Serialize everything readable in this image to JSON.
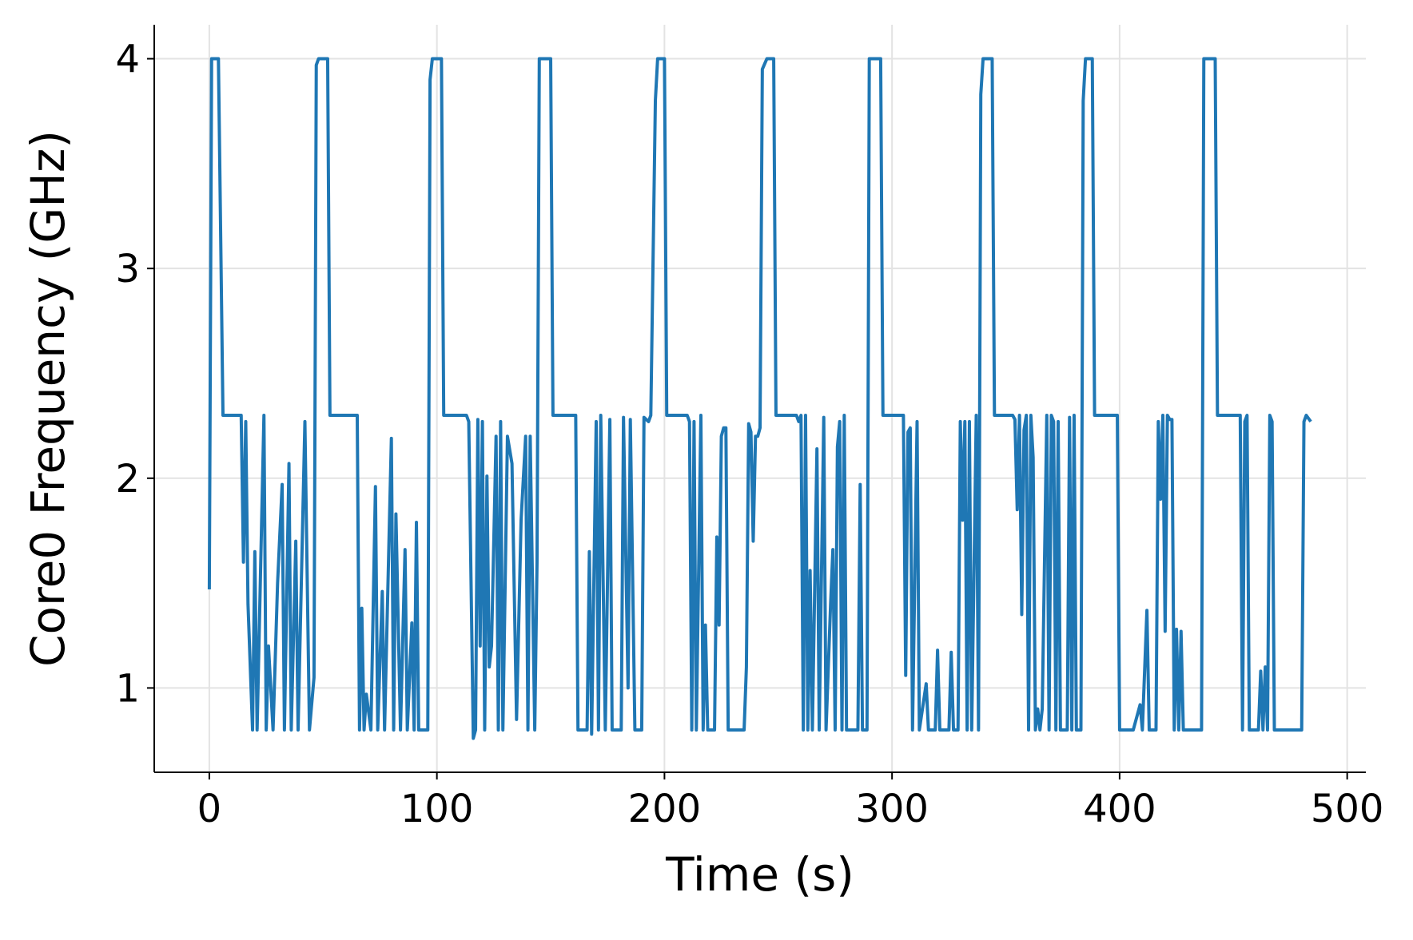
{
  "chart_data": {
    "type": "line",
    "x_label": "Time (s)",
    "y_label": "Core0 Frequency (GHz)",
    "x": [
      0,
      1,
      4,
      6,
      14,
      15,
      16,
      17,
      19,
      20,
      21,
      24,
      25,
      26,
      28,
      30,
      32,
      33,
      35,
      36,
      38,
      39,
      42,
      44,
      46,
      47,
      48,
      52,
      53,
      65,
      66,
      67,
      68,
      69,
      71,
      73,
      74,
      76,
      77,
      80,
      81,
      82,
      84,
      86,
      87,
      89,
      90,
      91,
      92,
      96,
      97,
      98,
      102,
      103,
      113,
      114,
      116,
      117,
      118,
      119,
      120,
      121,
      122,
      123,
      124,
      126,
      127,
      128,
      129,
      131,
      133,
      135,
      137,
      139,
      140,
      141,
      143,
      144,
      145,
      150,
      151,
      161,
      162,
      166,
      167,
      168,
      170,
      171,
      172,
      174,
      176,
      177,
      181,
      182,
      184,
      185,
      187,
      190,
      191,
      193,
      194,
      196,
      197,
      200,
      201,
      210,
      211,
      212,
      213,
      214,
      216,
      217,
      218,
      219,
      222,
      223,
      224,
      225,
      226,
      227,
      228,
      235,
      236,
      237,
      238,
      239,
      240,
      241,
      242,
      243,
      245,
      248,
      249,
      258,
      259,
      260,
      261,
      262,
      263,
      264,
      265,
      267,
      268,
      270,
      271,
      273,
      274,
      275,
      276,
      277,
      278,
      279,
      280,
      285,
      286,
      287,
      289,
      290,
      295,
      296,
      305,
      306,
      307,
      308,
      309,
      311,
      312,
      315,
      316,
      319,
      320,
      321,
      325,
      326,
      327,
      329,
      330,
      331,
      332,
      333,
      334,
      335,
      337,
      338,
      339,
      340,
      344,
      345,
      353,
      354,
      355,
      356,
      357,
      358,
      359,
      360,
      361,
      362,
      363,
      364,
      365,
      366,
      368,
      369,
      370,
      371,
      372,
      373,
      374,
      377,
      378,
      379,
      380,
      381,
      383,
      384,
      385,
      388,
      389,
      399,
      400,
      406,
      409,
      410,
      412,
      413,
      416,
      417,
      418,
      419,
      420,
      421,
      422,
      423,
      424,
      425,
      426,
      427,
      428,
      436,
      437,
      442,
      443,
      453,
      454,
      455,
      456,
      457,
      461,
      462,
      463,
      464,
      465,
      466,
      467,
      468,
      480,
      481,
      482,
      484
    ],
    "values": [
      1.47,
      4.0,
      4.0,
      2.3,
      2.3,
      1.6,
      2.27,
      1.4,
      0.8,
      1.65,
      0.8,
      2.3,
      0.8,
      1.2,
      0.8,
      1.5,
      1.97,
      0.8,
      2.07,
      0.8,
      1.7,
      0.8,
      2.27,
      0.8,
      1.05,
      3.97,
      4.0,
      4.0,
      2.3,
      2.3,
      0.8,
      1.38,
      0.8,
      0.97,
      0.8,
      1.96,
      0.8,
      1.46,
      0.8,
      2.19,
      0.8,
      1.83,
      0.8,
      1.66,
      0.8,
      1.31,
      0.8,
      1.79,
      0.8,
      0.8,
      3.9,
      4.0,
      4.0,
      2.3,
      2.3,
      2.27,
      0.76,
      0.8,
      2.28,
      1.2,
      2.27,
      0.8,
      2.01,
      1.1,
      1.2,
      2.2,
      0.8,
      2.27,
      0.8,
      2.2,
      2.07,
      0.85,
      1.8,
      2.2,
      0.8,
      2.2,
      0.8,
      1.6,
      4.0,
      4.0,
      2.3,
      2.3,
      0.8,
      0.8,
      1.65,
      0.78,
      2.27,
      0.8,
      2.3,
      0.8,
      2.28,
      0.8,
      0.8,
      2.29,
      1.0,
      2.28,
      0.8,
      0.8,
      2.29,
      2.27,
      2.3,
      3.8,
      4.0,
      4.0,
      2.3,
      2.3,
      2.27,
      0.8,
      2.27,
      0.8,
      2.3,
      0.8,
      1.3,
      0.8,
      0.8,
      1.72,
      1.3,
      2.2,
      2.24,
      2.24,
      0.8,
      0.8,
      1.1,
      2.26,
      2.22,
      1.7,
      2.2,
      2.2,
      2.24,
      3.95,
      4.0,
      4.0,
      2.3,
      2.3,
      2.27,
      2.3,
      0.8,
      2.3,
      0.8,
      1.56,
      0.8,
      2.14,
      0.8,
      2.29,
      0.8,
      1.4,
      1.66,
      0.8,
      2.15,
      2.27,
      0.8,
      2.3,
      0.8,
      0.8,
      1.97,
      0.8,
      0.8,
      4.0,
      4.0,
      2.3,
      2.3,
      1.06,
      2.22,
      2.24,
      0.8,
      2.27,
      0.8,
      1.02,
      0.8,
      0.8,
      1.18,
      0.8,
      0.8,
      1.17,
      0.8,
      0.8,
      2.27,
      1.8,
      2.27,
      0.8,
      2.27,
      0.8,
      2.3,
      0.8,
      3.83,
      4.0,
      4.0,
      2.3,
      2.3,
      2.28,
      1.85,
      2.3,
      1.35,
      2.23,
      2.3,
      0.8,
      2.3,
      2.1,
      0.8,
      0.9,
      0.8,
      0.9,
      2.3,
      0.8,
      2.3,
      2.27,
      0.8,
      2.27,
      0.8,
      0.8,
      2.29,
      0.8,
      2.3,
      0.8,
      0.8,
      3.8,
      4.0,
      4.0,
      2.3,
      2.3,
      0.8,
      0.8,
      0.92,
      0.8,
      1.37,
      0.8,
      0.8,
      2.27,
      1.9,
      2.3,
      1.27,
      2.3,
      2.28,
      2.28,
      0.8,
      1.28,
      0.8,
      1.27,
      0.8,
      0.8,
      4.0,
      4.0,
      2.3,
      2.3,
      0.8,
      2.27,
      2.3,
      0.8,
      0.8,
      1.08,
      0.8,
      1.1,
      0.8,
      2.3,
      2.27,
      0.8,
      0.8,
      2.27,
      2.3,
      2.27
    ],
    "color": "#1f77b4",
    "xlim": [
      -24.2,
      508.2
    ],
    "ylim": [
      0.598,
      4.162
    ],
    "xticks": [
      0,
      100,
      200,
      300,
      400,
      500
    ],
    "yticks": [
      1,
      2,
      3,
      4
    ],
    "grid": true
  }
}
